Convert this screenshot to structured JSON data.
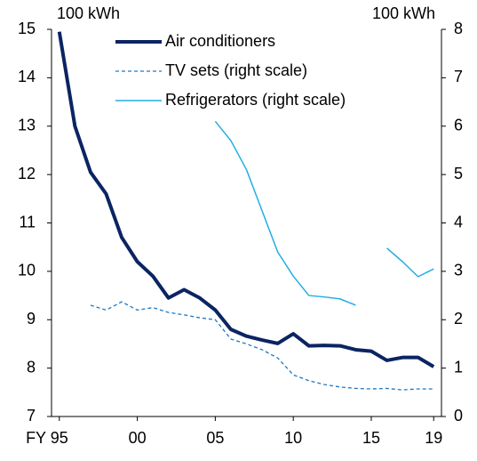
{
  "chart_data": {
    "type": "line",
    "y_label": "100 kWh",
    "y2_label": "100 kWh",
    "x": [
      1995,
      1996,
      1997,
      1998,
      1999,
      2000,
      2001,
      2002,
      2003,
      2004,
      2005,
      2006,
      2007,
      2008,
      2009,
      2010,
      2011,
      2012,
      2013,
      2014,
      2015,
      2016,
      2017,
      2018,
      2019
    ],
    "xlim": [
      1994.5,
      2019.5
    ],
    "xticks": [
      {
        "value": 1995,
        "label": "FY 95"
      },
      {
        "value": 2000,
        "label": "00"
      },
      {
        "value": 2005,
        "label": "05"
      },
      {
        "value": 2010,
        "label": "10"
      },
      {
        "value": 2015,
        "label": "15"
      },
      {
        "value": 2019,
        "label": "19"
      }
    ],
    "ylim": [
      7,
      15
    ],
    "yticks": [
      7,
      8,
      9,
      10,
      11,
      12,
      13,
      14,
      15
    ],
    "y2lim": [
      0,
      8
    ],
    "y2ticks": [
      0,
      1,
      2,
      3,
      4,
      5,
      6,
      7,
      8
    ],
    "legend": "upper-left",
    "series": [
      {
        "name": "Air conditioners",
        "color": "#0b2462",
        "style": "solid",
        "width": 4,
        "values": [
          14.95,
          13.0,
          12.05,
          11.6,
          10.7,
          10.2,
          9.9,
          9.45,
          9.62,
          9.45,
          9.2,
          8.8,
          8.66,
          8.58,
          8.51,
          8.71,
          8.46,
          8.47,
          8.46,
          8.38,
          8.35,
          8.16,
          8.22,
          8.22,
          8.03
        ]
      },
      {
        "name": "TV sets (right scale)",
        "color": "#1f78c1",
        "style": "dashed",
        "width": 1.3,
        "axis": "y2",
        "values": [
          null,
          null,
          2.3,
          2.2,
          2.37,
          2.2,
          2.25,
          2.15,
          2.1,
          2.04,
          2.0,
          1.6,
          1.5,
          1.38,
          1.21,
          0.86,
          0.74,
          0.66,
          0.61,
          0.58,
          0.57,
          0.58,
          0.55,
          0.57,
          0.57
        ]
      },
      {
        "name": "Refrigerators (right scale)",
        "color": "#21aee3",
        "style": "solid",
        "width": 1.5,
        "axis": "y2",
        "values": [
          null,
          null,
          null,
          null,
          null,
          null,
          null,
          null,
          null,
          null,
          6.1,
          5.7,
          5.1,
          4.25,
          3.4,
          2.9,
          2.5,
          2.47,
          2.43,
          2.3,
          null,
          3.48,
          3.2,
          2.89,
          3.05
        ]
      }
    ]
  }
}
